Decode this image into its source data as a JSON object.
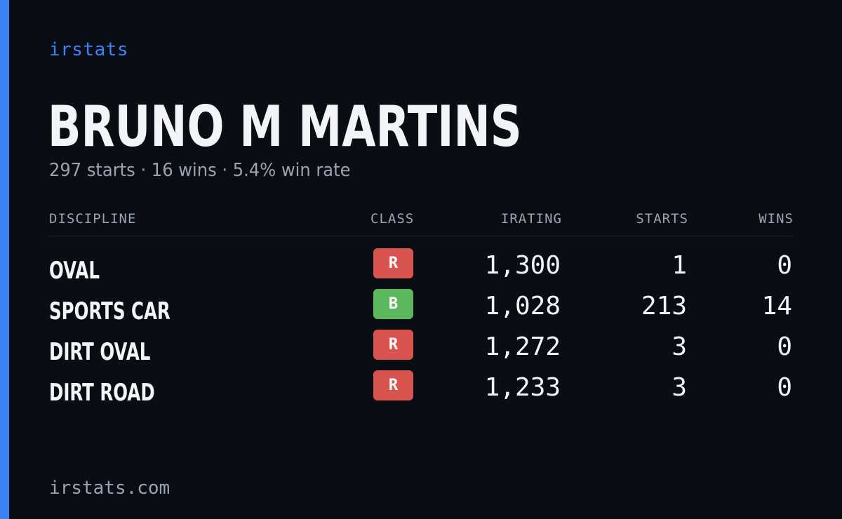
{
  "brand": "irstats",
  "driver": {
    "name": "BRUNO M MARTINS",
    "summary": "297 starts · 16 wins · 5.4% win rate"
  },
  "table": {
    "headers": {
      "discipline": "DISCIPLINE",
      "class": "CLASS",
      "irating": "IRATING",
      "starts": "STARTS",
      "wins": "WINS"
    },
    "rows": [
      {
        "discipline": "OVAL",
        "class": "R",
        "class_color": "#d9534f",
        "irating": "1,300",
        "starts": "1",
        "wins": "0"
      },
      {
        "discipline": "SPORTS CAR",
        "class": "B",
        "class_color": "#5cb85c",
        "irating": "1,028",
        "starts": "213",
        "wins": "14"
      },
      {
        "discipline": "DIRT OVAL",
        "class": "R",
        "class_color": "#d9534f",
        "irating": "1,272",
        "starts": "3",
        "wins": "0"
      },
      {
        "discipline": "DIRT ROAD",
        "class": "R",
        "class_color": "#d9534f",
        "irating": "1,233",
        "starts": "3",
        "wins": "0"
      }
    ]
  },
  "footer": "irstats.com",
  "colors": {
    "accent": "#3d82f6",
    "background": "#0b0d14",
    "text": "#f2f4f8",
    "muted": "#9aa3b2"
  }
}
